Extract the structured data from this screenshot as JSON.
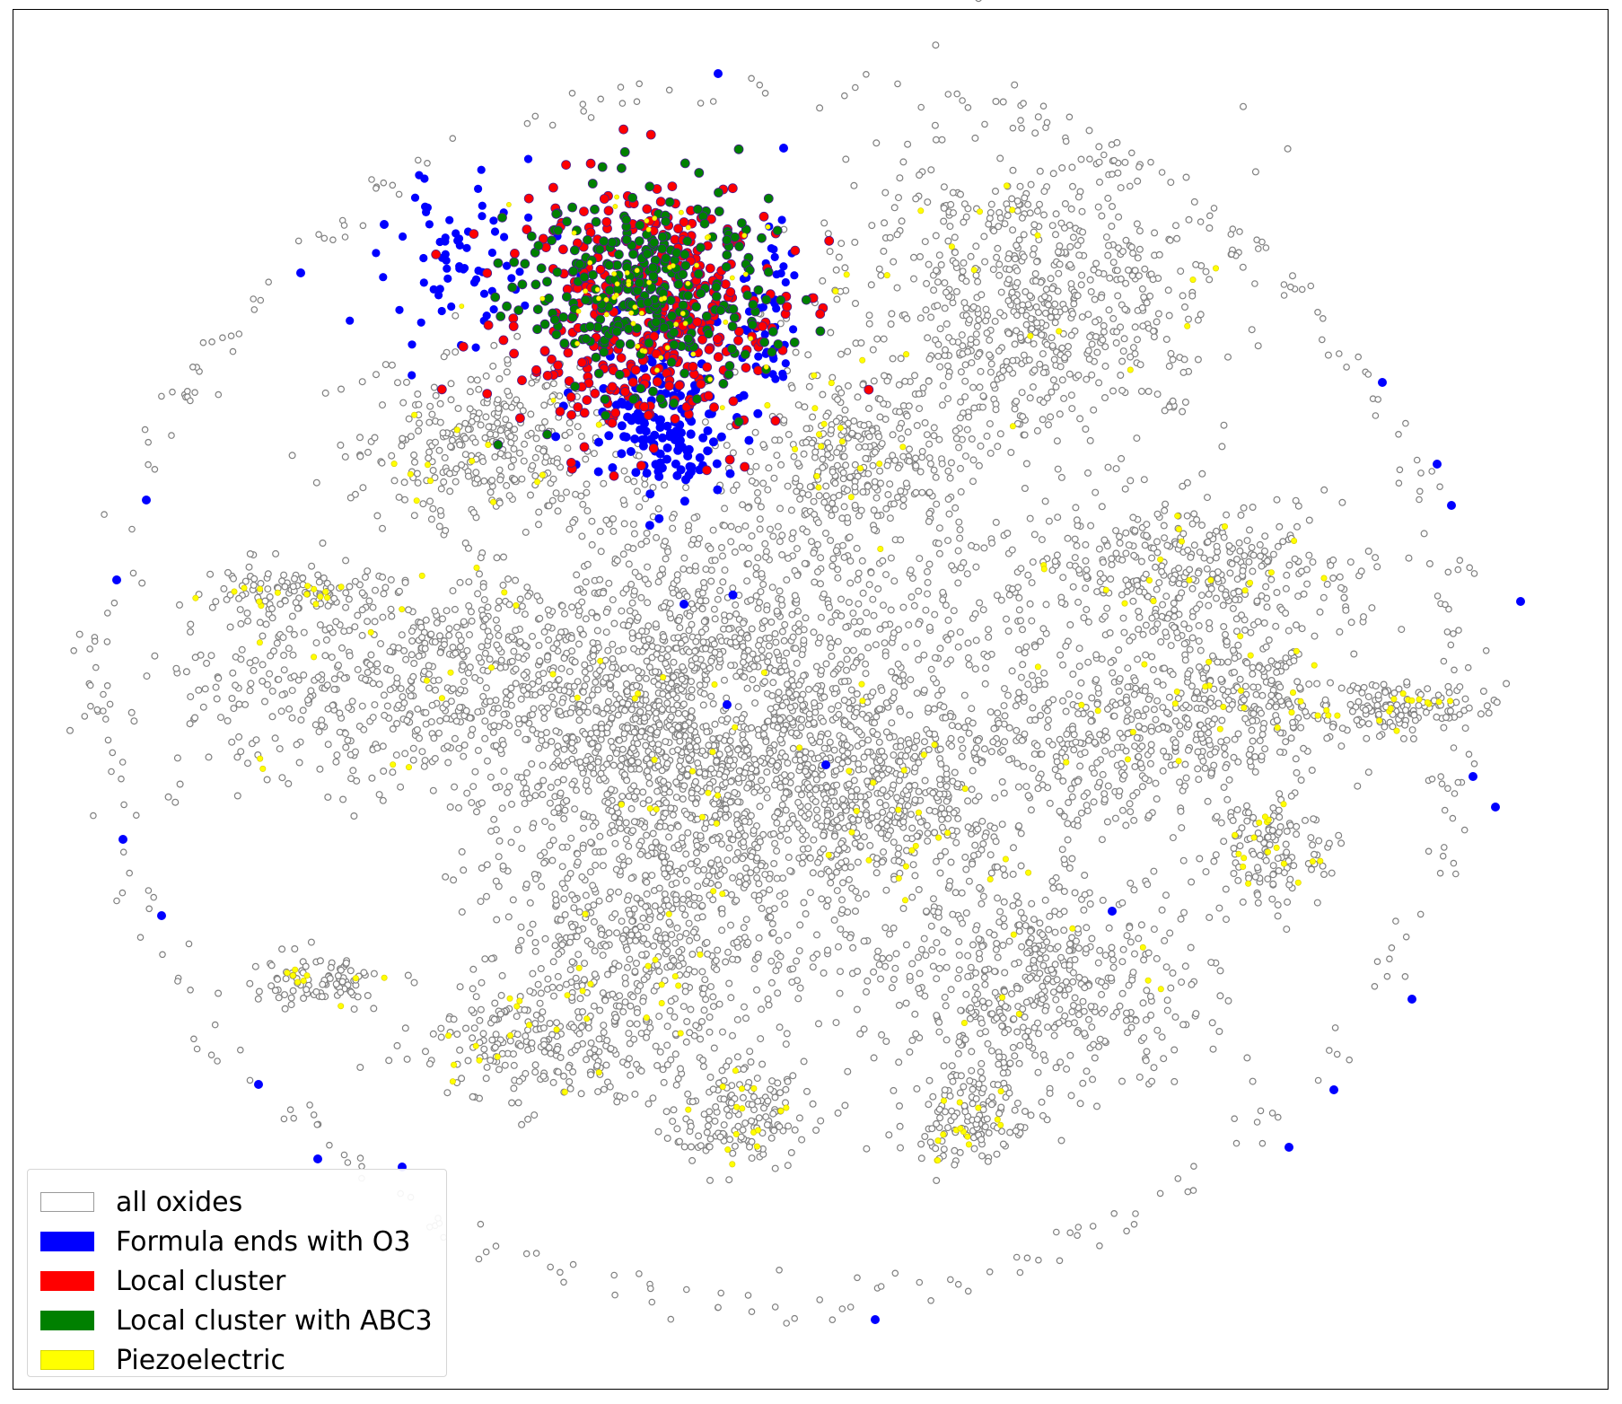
{
  "chart_data": {
    "type": "scatter",
    "title": "",
    "xlabel": "",
    "ylabel": "",
    "axes_visible": false,
    "grid": false,
    "legend_position": "lower-left",
    "legend": [
      {
        "label": "all oxides",
        "color": "#ffffff",
        "edge": "#808080"
      },
      {
        "label": "Formula ends with O3",
        "color": "#0000ff"
      },
      {
        "label": "Local cluster",
        "color": "#ff0000"
      },
      {
        "label": "Local cluster with ABC3",
        "color": "#008000"
      },
      {
        "label": "Piezoelectric",
        "color": "#ffff00"
      }
    ],
    "series": [
      {
        "name": "all oxides",
        "color": "#ffffff",
        "edge": "#808080"
      },
      {
        "name": "Formula ends with O3",
        "color": "#0000ff"
      },
      {
        "name": "Local cluster",
        "color": "#ff0000"
      },
      {
        "name": "Local cluster with ABC3",
        "color": "#008000"
      },
      {
        "name": "Piezoelectric",
        "color": "#ffff00"
      }
    ]
  }
}
